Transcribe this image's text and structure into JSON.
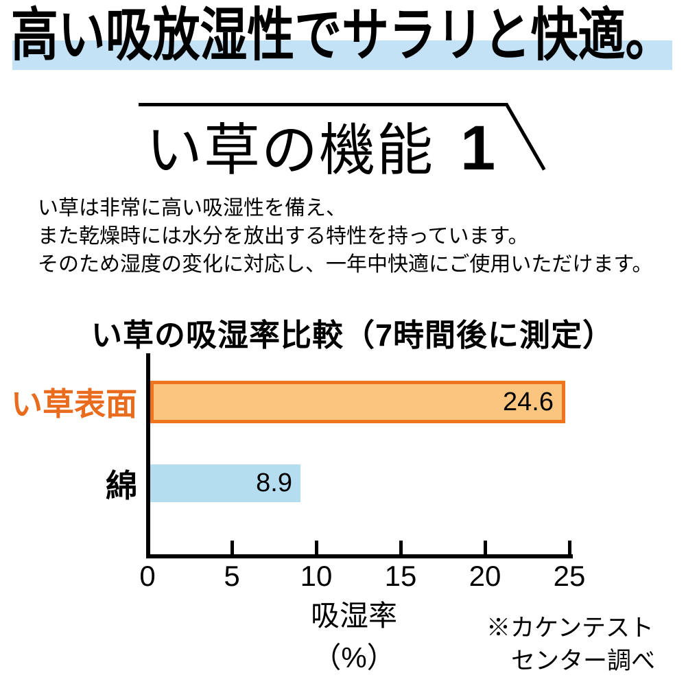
{
  "header": {
    "title": "高い吸放湿性でサラリと快適。",
    "highlight_color": "#c3e2f6"
  },
  "section": {
    "title": "い草の機能",
    "number": "1"
  },
  "description": {
    "lines": [
      "い草は非常に高い吸湿性を備え、",
      "また乾燥時には水分を放出する特性を持っています。",
      "そのため湿度の変化に対応し、一年中快適にご使用いただけます。"
    ]
  },
  "chart_data": {
    "type": "bar",
    "orientation": "horizontal",
    "title": "い草の吸湿率比較（7時間後に測定）",
    "categories": [
      "い草表面",
      "綿"
    ],
    "values": [
      24.6,
      8.9
    ],
    "value_labels": [
      "24.6",
      "8.9"
    ],
    "bar_fill_colors": [
      "#fac57e",
      "#b5ddf0"
    ],
    "bar_border_colors": [
      "#ee7420",
      "none"
    ],
    "category_label_colors": [
      "#e96c1e",
      "#000000"
    ],
    "xlabel": "吸湿率（%）",
    "x_ticks": [
      "0",
      "5",
      "10",
      "15",
      "20",
      "25"
    ],
    "xlim": [
      0,
      25
    ],
    "grid": false,
    "legend": false,
    "source_note_lines": [
      "※カケンテスト",
      "センター調べ"
    ]
  }
}
